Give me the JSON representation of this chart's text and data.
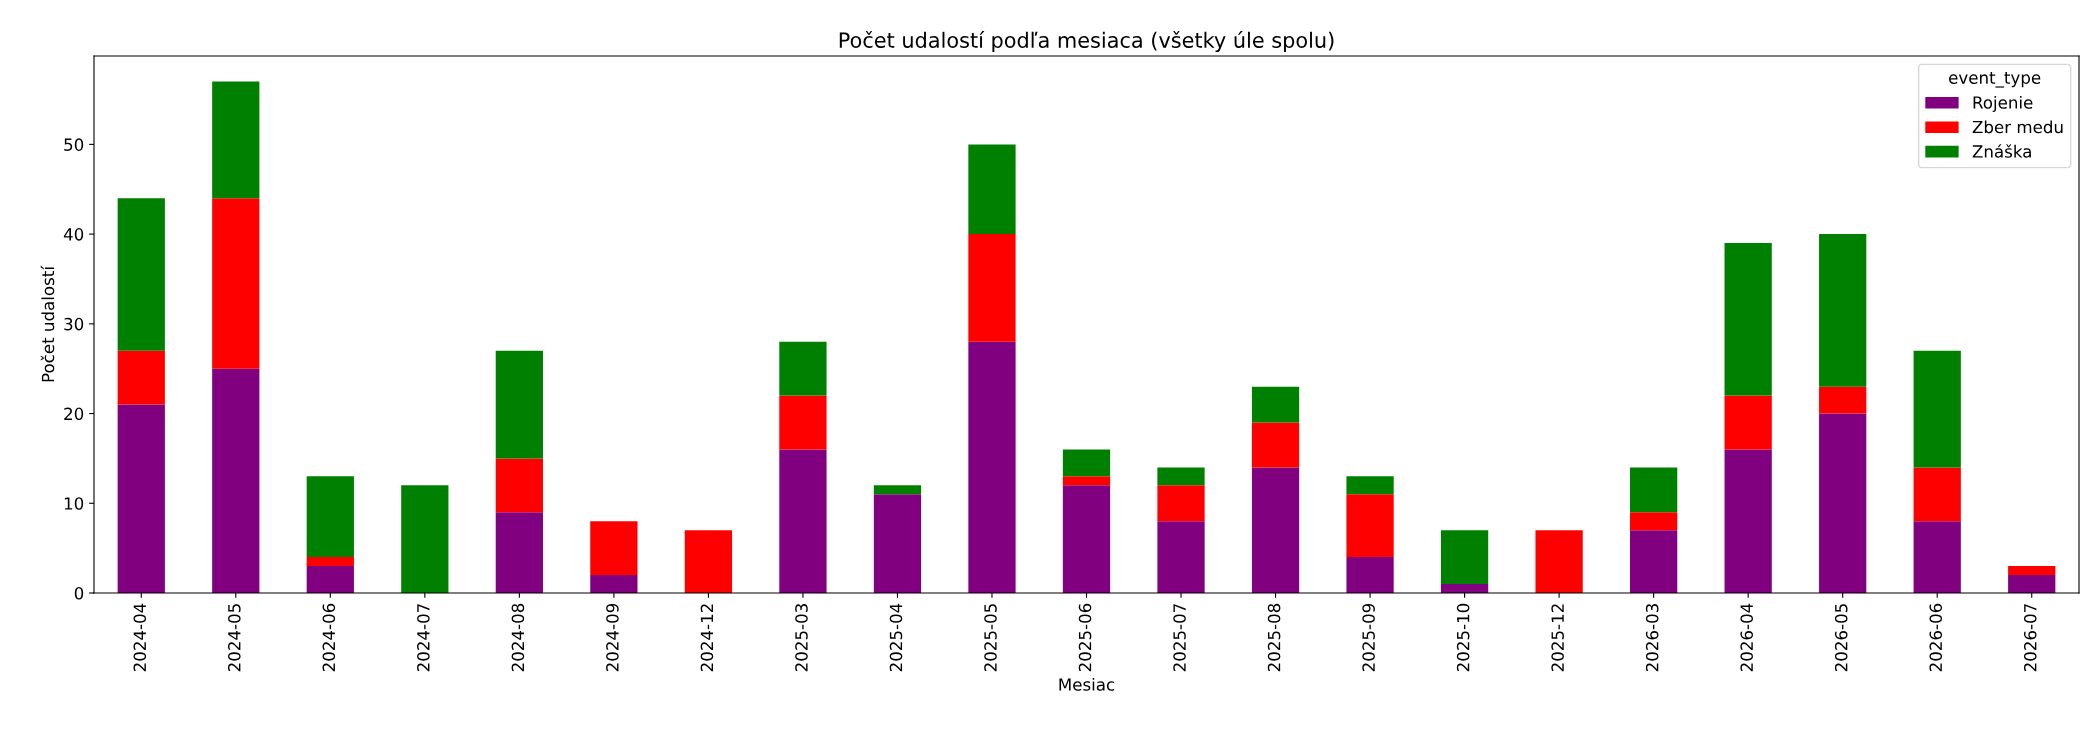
{
  "chart_data": {
    "type": "bar",
    "stacked": true,
    "title": "Počet udalostí podľa mesiaca (všetky úle spolu)",
    "xlabel": "Mesiac",
    "ylabel": "Počet udalostí",
    "legend_title": "event_type",
    "legend": "top right",
    "grid": false,
    "categories": [
      "2024-04",
      "2024-05",
      "2024-06",
      "2024-07",
      "2024-08",
      "2024-09",
      "2024-12",
      "2025-03",
      "2025-04",
      "2025-05",
      "2025-06",
      "2025-07",
      "2025-08",
      "2025-09",
      "2025-10",
      "2025-12",
      "2026-03",
      "2026-04",
      "2026-05",
      "2026-06",
      "2026-07"
    ],
    "series": [
      {
        "name": "Rojenie",
        "color": "#800080",
        "values": [
          21,
          25,
          3,
          0,
          9,
          2,
          0,
          16,
          11,
          28,
          12,
          8,
          14,
          4,
          1,
          0,
          7,
          16,
          20,
          8,
          2
        ]
      },
      {
        "name": "Zber medu",
        "color": "#ff0000",
        "values": [
          6,
          19,
          1,
          0,
          6,
          6,
          7,
          6,
          0,
          12,
          1,
          4,
          5,
          7,
          0,
          7,
          2,
          6,
          3,
          6,
          1
        ]
      },
      {
        "name": "Znáška",
        "color": "#008000",
        "values": [
          17,
          13,
          9,
          12,
          12,
          0,
          0,
          6,
          1,
          10,
          3,
          2,
          4,
          2,
          6,
          0,
          5,
          17,
          17,
          13,
          0
        ]
      }
    ],
    "ylim": [
      0,
      59.85
    ],
    "yticks": [
      0,
      10,
      20,
      30,
      40,
      50
    ]
  }
}
